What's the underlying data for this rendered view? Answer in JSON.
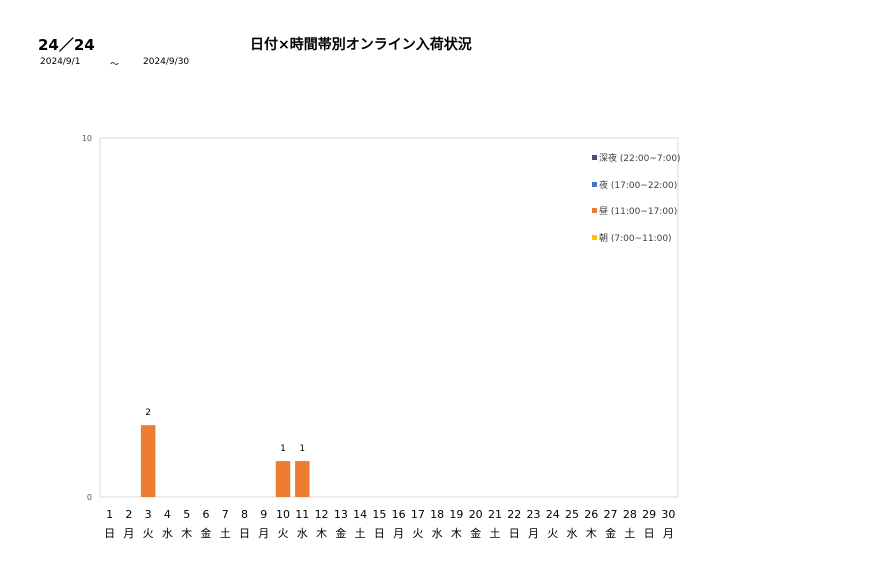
{
  "header": {
    "code": "24／24",
    "title": "日付×時間帯別オンライン入荷状況",
    "date_from": "2024/9/1",
    "tilde": "～",
    "date_to": "2024/9/30"
  },
  "colors": {
    "night_deep": "#44546A",
    "night": "#4472C4",
    "day": "#ED7D31",
    "morning": "#FFC000",
    "frame": "#D9D9D9"
  },
  "chart_data": {
    "type": "bar",
    "stacked": true,
    "title": "",
    "xlabel": "",
    "ylabel": "",
    "ylim": [
      0,
      10
    ],
    "y_ticks": [
      "0",
      "10"
    ],
    "grid": false,
    "legend_position": "top-right",
    "days": [
      "1",
      "2",
      "3",
      "4",
      "5",
      "6",
      "7",
      "8",
      "9",
      "10",
      "11",
      "12",
      "13",
      "14",
      "15",
      "16",
      "17",
      "18",
      "19",
      "20",
      "21",
      "22",
      "23",
      "24",
      "25",
      "26",
      "27",
      "28",
      "29",
      "30"
    ],
    "weekdays": [
      "日",
      "月",
      "火",
      "水",
      "木",
      "金",
      "土",
      "日",
      "月",
      "火",
      "水",
      "木",
      "金",
      "土",
      "日",
      "月",
      "火",
      "水",
      "木",
      "金",
      "土",
      "日",
      "月",
      "火",
      "水",
      "木",
      "金",
      "土",
      "日",
      "月"
    ],
    "series": [
      {
        "name": "深夜 (22:00~7:00)",
        "color": "#44546A",
        "values": [
          0,
          0,
          0,
          0,
          0,
          0,
          0,
          0,
          0,
          0,
          0,
          0,
          0,
          0,
          0,
          0,
          0,
          0,
          0,
          0,
          0,
          0,
          0,
          0,
          0,
          0,
          0,
          0,
          0,
          0
        ]
      },
      {
        "name": "夜 (17:00~22:00)",
        "color": "#4472C4",
        "values": [
          0,
          0,
          0,
          0,
          0,
          0,
          0,
          0,
          0,
          0,
          0,
          0,
          0,
          0,
          0,
          0,
          0,
          0,
          0,
          0,
          0,
          0,
          0,
          0,
          0,
          0,
          0,
          0,
          0,
          0
        ]
      },
      {
        "name": "昼 (11:00~17:00)",
        "color": "#ED7D31",
        "values": [
          0,
          0,
          2,
          0,
          0,
          0,
          0,
          0,
          0,
          1,
          1,
          0,
          0,
          0,
          0,
          0,
          0,
          0,
          0,
          0,
          0,
          0,
          0,
          0,
          0,
          0,
          0,
          0,
          0,
          0
        ]
      },
      {
        "name": "朝 (7:00~11:00)",
        "color": "#FFC000",
        "values": [
          0,
          0,
          0,
          0,
          0,
          0,
          0,
          0,
          0,
          0,
          0,
          0,
          0,
          0,
          0,
          0,
          0,
          0,
          0,
          0,
          0,
          0,
          0,
          0,
          0,
          0,
          0,
          0,
          0,
          0
        ]
      }
    ],
    "data_labels": [
      "",
      "",
      "2",
      "",
      "",
      "",
      "",
      "",
      "",
      "1",
      "1",
      "",
      "",
      "",
      "",
      "",
      "",
      "",
      "",
      "",
      "",
      "",
      "",
      "",
      "",
      "",
      "",
      "",
      "",
      ""
    ]
  }
}
